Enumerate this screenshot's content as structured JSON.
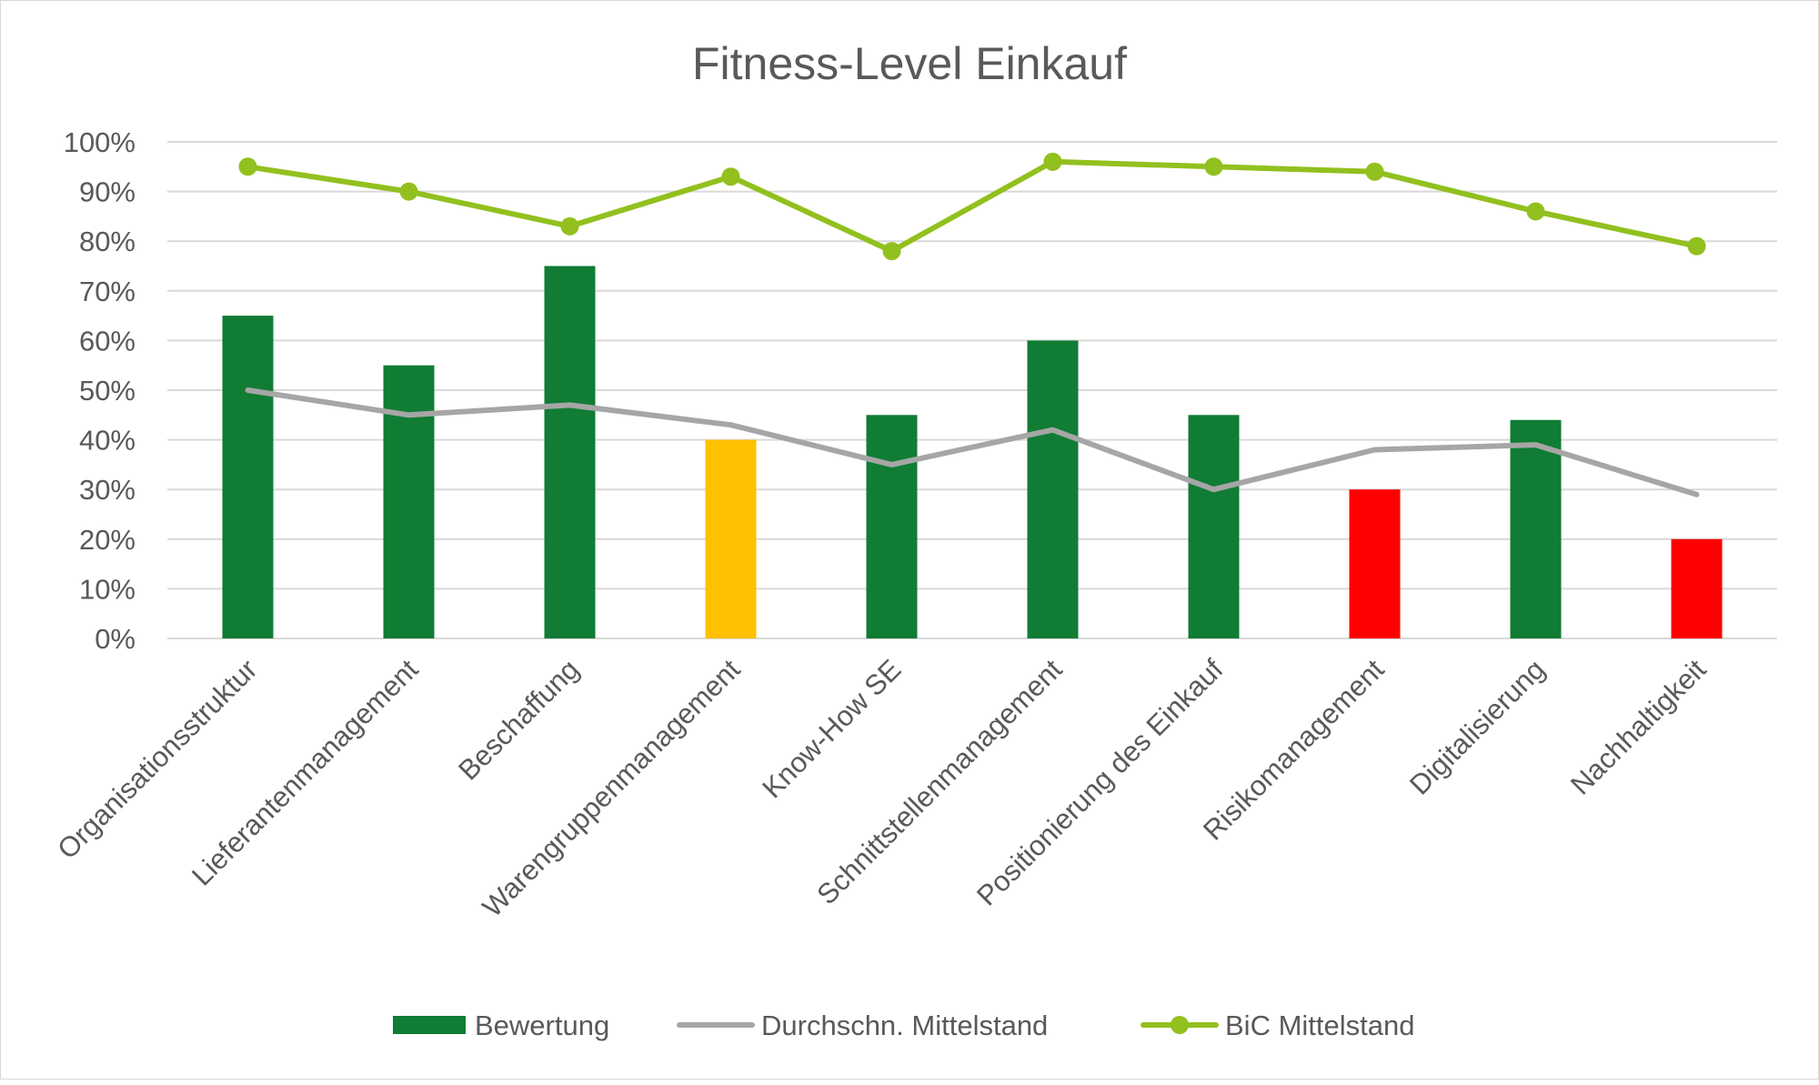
{
  "chart_data": {
    "type": "bar",
    "title": "Fitness-Level Einkauf",
    "xlabel": "",
    "ylabel": "",
    "ylim": [
      0,
      100
    ],
    "yticks": [
      "0%",
      "10%",
      "20%",
      "30%",
      "40%",
      "50%",
      "60%",
      "70%",
      "80%",
      "90%",
      "100%"
    ],
    "grid": true,
    "legend_position": "bottom",
    "categories": [
      "Organisationsstruktur",
      "Lieferantenmanagement",
      "Beschaffung",
      "Warengruppenmanagement",
      "Know-How SE",
      "Schnittstellenmanagement",
      "Positionierung des Einkauf",
      "Risikomanagement",
      "Digitalisierung",
      "Nachhaltigkeit"
    ],
    "series": [
      {
        "name": "Bewertung",
        "kind": "bar",
        "color": "#107c34",
        "values": [
          65,
          55,
          75,
          40,
          45,
          60,
          45,
          30,
          44,
          20
        ],
        "bar_colors": [
          "#107c34",
          "#107c34",
          "#107c34",
          "#ffc000",
          "#107c34",
          "#107c34",
          "#107c34",
          "#ff0000",
          "#107c34",
          "#ff0000"
        ]
      },
      {
        "name": "Durchschn. Mittelstand",
        "kind": "line",
        "color": "#a6a6a6",
        "values": [
          50,
          45,
          47,
          43,
          35,
          42,
          30,
          38,
          39,
          29
        ]
      },
      {
        "name": "BiC Mittelstand",
        "kind": "line-markers",
        "color": "#92c01f",
        "values": [
          95,
          90,
          83,
          93,
          78,
          96,
          95,
          94,
          86,
          79
        ]
      }
    ]
  }
}
